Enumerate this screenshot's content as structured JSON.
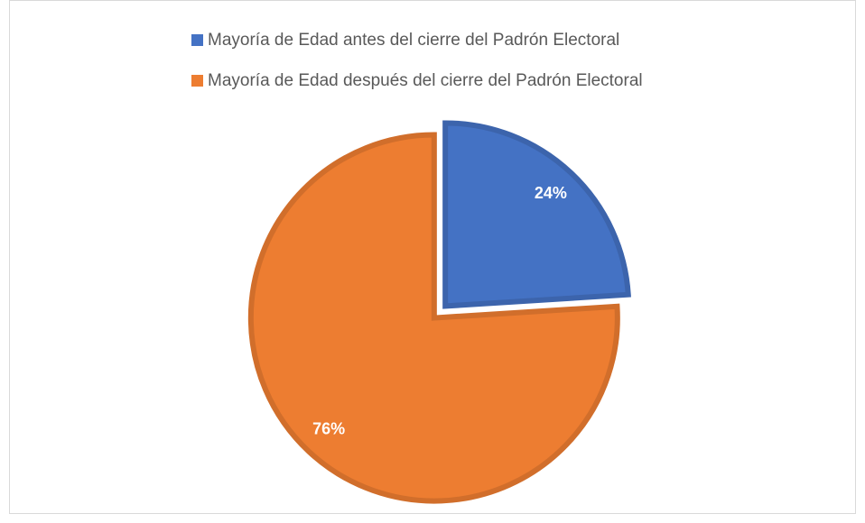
{
  "chart_data": {
    "type": "pie",
    "categories": [
      "Mayoría de Edad antes del cierre del Padrón Electoral",
      "Mayoría de Edad después del cierre del Padrón Electoral"
    ],
    "values": [
      24,
      76
    ],
    "value_labels": [
      "24%",
      "76%"
    ],
    "colors": [
      "#4472c4",
      "#ed7d31"
    ],
    "legend": "top"
  }
}
